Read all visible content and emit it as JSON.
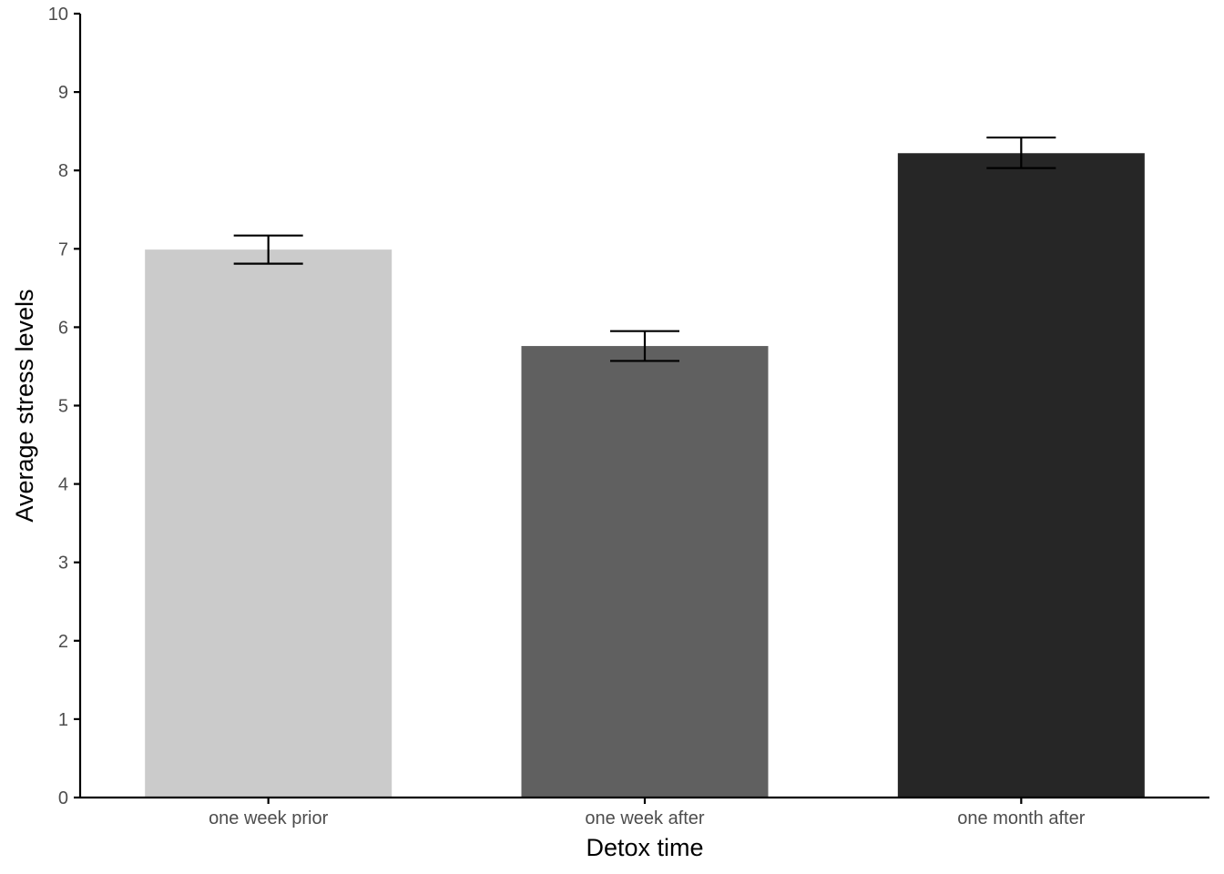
{
  "chart_data": {
    "type": "bar",
    "title": "",
    "xlabel": "Detox time",
    "ylabel": "Average stress levels",
    "categories": [
      "one week prior",
      "one week after",
      "one month after"
    ],
    "values": [
      6.99,
      5.76,
      8.22
    ],
    "error_bars": [
      {
        "low": 6.81,
        "high": 7.17
      },
      {
        "low": 5.57,
        "high": 5.95
      },
      {
        "low": 8.03,
        "high": 8.42
      }
    ],
    "bar_colors": [
      "#cbcbcb",
      "#606060",
      "#262626"
    ],
    "error_bar_color": "#000000",
    "ylim": [
      0,
      10
    ],
    "yticks": [
      0,
      1,
      2,
      3,
      4,
      5,
      6,
      7,
      8,
      9,
      10
    ],
    "grid": false,
    "legend": "none"
  }
}
